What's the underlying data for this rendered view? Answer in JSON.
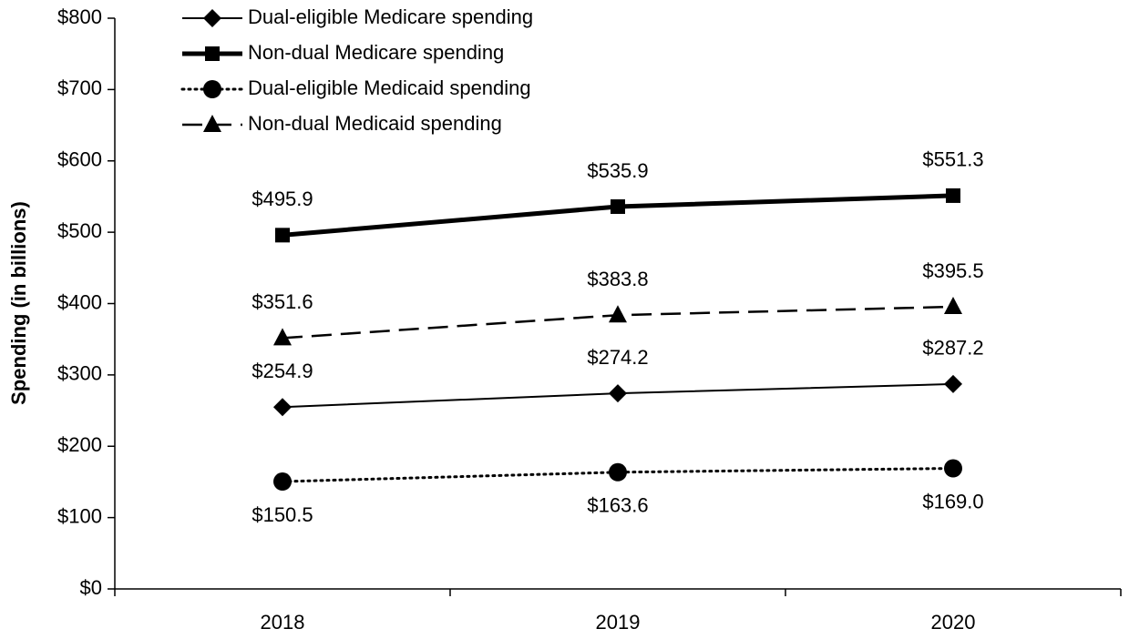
{
  "chart_data": {
    "type": "line",
    "y_label": "Spending (in billions)",
    "categories": [
      "2018",
      "2019",
      "2020"
    ],
    "ylim": [
      0,
      800
    ],
    "yticks": [
      {
        "value": 0,
        "label": "$0"
      },
      {
        "value": 100,
        "label": "$100"
      },
      {
        "value": 200,
        "label": "$200"
      },
      {
        "value": 300,
        "label": "$300"
      },
      {
        "value": 400,
        "label": "$400"
      },
      {
        "value": 500,
        "label": "$500"
      },
      {
        "value": 600,
        "label": "$600"
      },
      {
        "value": 700,
        "label": "$700"
      },
      {
        "value": 800,
        "label": "$800"
      }
    ],
    "legend": "upper left",
    "series": [
      {
        "name": "Dual-eligible Medicare spending",
        "color": "#000000",
        "marker": "diamond",
        "line_style": "solid",
        "line_width": 2,
        "label_position": "above",
        "values": [
          254.9,
          274.2,
          287.2
        ],
        "value_labels": [
          "$254.9",
          "$274.2",
          "$287.2"
        ]
      },
      {
        "name": "Non-dual Medicare spending",
        "color": "#000000",
        "marker": "square",
        "line_style": "solid",
        "line_width": 5,
        "label_position": "above",
        "values": [
          495.9,
          535.9,
          551.3
        ],
        "value_labels": [
          "$495.9",
          "$535.9",
          "$551.3"
        ]
      },
      {
        "name": "Dual-eligible Medicaid spending",
        "color": "#000000",
        "marker": "circle",
        "line_style": "dotted",
        "line_width": 3,
        "label_position": "below",
        "values": [
          150.5,
          163.6,
          169.0
        ],
        "value_labels": [
          "$150.5",
          "$163.6",
          "$169.0"
        ]
      },
      {
        "name": "Non-dual Medicaid spending",
        "color": "#000000",
        "marker": "triangle",
        "line_style": "dashed",
        "line_width": 2.5,
        "label_position": "above",
        "values": [
          351.6,
          383.8,
          395.5
        ],
        "value_labels": [
          "$351.6",
          "$383.8",
          "$395.5"
        ]
      }
    ]
  }
}
